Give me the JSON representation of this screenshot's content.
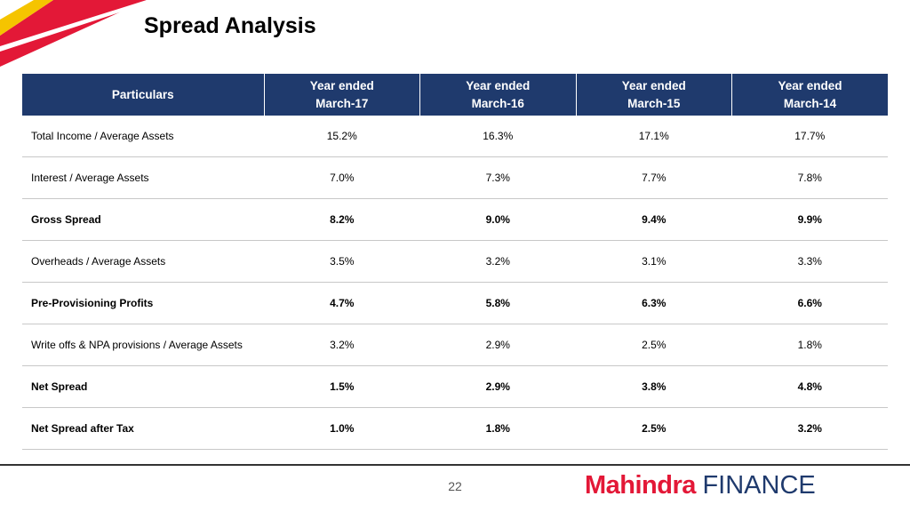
{
  "slide": {
    "title": "Spread Analysis",
    "page_number": "22"
  },
  "logo": {
    "brand": "Mahindra",
    "suffix": "FINANCE",
    "brand_color": "#e31837",
    "suffix_color": "#1f3a6d"
  },
  "table": {
    "header_color": "#1f3a6d",
    "header": {
      "particulars": "Particulars",
      "columns": [
        {
          "line1": "Year ended",
          "line2": "March-17"
        },
        {
          "line1": "Year ended",
          "line2": "March-16"
        },
        {
          "line1": "Year ended",
          "line2": "March-15"
        },
        {
          "line1": "Year ended",
          "line2": "March-14"
        }
      ]
    },
    "rows": [
      {
        "label": "Total Income / Average Assets",
        "bold": false,
        "values": [
          "15.2%",
          "16.3%",
          "17.1%",
          "17.7%"
        ]
      },
      {
        "label": "Interest / Average Assets",
        "bold": false,
        "values": [
          "7.0%",
          "7.3%",
          "7.7%",
          "7.8%"
        ]
      },
      {
        "label": "Gross Spread",
        "bold": true,
        "values": [
          "8.2%",
          "9.0%",
          "9.4%",
          "9.9%"
        ]
      },
      {
        "label": "Overheads / Average Assets",
        "bold": false,
        "values": [
          "3.5%",
          "3.2%",
          "3.1%",
          "3.3%"
        ]
      },
      {
        "label": "Pre-Provisioning Profits",
        "bold": true,
        "values": [
          "4.7%",
          "5.8%",
          "6.3%",
          "6.6%"
        ]
      },
      {
        "label": "Write offs & NPA provisions / Average Assets",
        "bold": false,
        "values": [
          "3.2%",
          "2.9%",
          "2.5%",
          "1.8%"
        ]
      },
      {
        "label": "Net Spread",
        "bold": true,
        "values": [
          "1.5%",
          "2.9%",
          "3.8%",
          "4.8%"
        ]
      },
      {
        "label": "Net Spread after Tax",
        "bold": true,
        "values": [
          "1.0%",
          "1.8%",
          "2.5%",
          "3.2%"
        ]
      }
    ]
  }
}
